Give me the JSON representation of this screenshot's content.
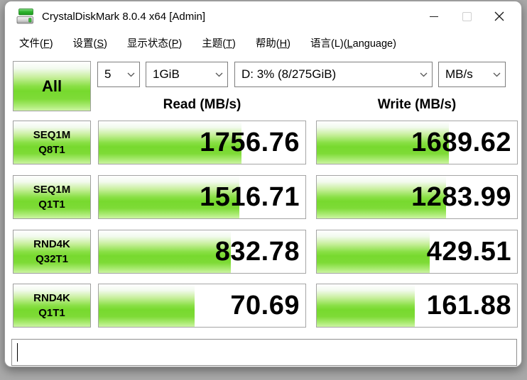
{
  "window": {
    "title": "CrystalDiskMark 8.0.4 x64 [Admin]"
  },
  "menu": {
    "items": [
      {
        "pre": "文件(",
        "key": "F",
        "post": ")"
      },
      {
        "pre": "设置(",
        "key": "S",
        "post": ")"
      },
      {
        "pre": "显示状态(",
        "key": "P",
        "post": ")"
      },
      {
        "pre": "主题(",
        "key": "T",
        "post": ")"
      },
      {
        "pre": "帮助(",
        "key": "H",
        "post": ")"
      },
      {
        "pre": "语言(L)(",
        "key": "L",
        "post": "anguage)"
      }
    ]
  },
  "toolbar": {
    "all_button": "All",
    "test_count": "5",
    "test_size": "1GiB",
    "target_drive": "D: 3% (8/275GiB)",
    "unit": "MB/s"
  },
  "headers": {
    "read": "Read (MB/s)",
    "write": "Write (MB/s)"
  },
  "rows": [
    {
      "label1": "SEQ1M",
      "label2": "Q8T1",
      "read": {
        "value": "1756.76",
        "fill": 69
      },
      "write": {
        "value": "1689.62",
        "fill": 66
      }
    },
    {
      "label1": "SEQ1M",
      "label2": "Q1T1",
      "read": {
        "value": "1516.71",
        "fill": 68
      },
      "write": {
        "value": "1283.99",
        "fill": 64.5
      }
    },
    {
      "label1": "RND4K",
      "label2": "Q32T1",
      "read": {
        "value": "832.78",
        "fill": 64
      },
      "write": {
        "value": "429.51",
        "fill": 56.5
      }
    },
    {
      "label1": "RND4K",
      "label2": "Q1T1",
      "read": {
        "value": "70.69",
        "fill": 46.5
      },
      "write": {
        "value": "161.88",
        "fill": 49
      }
    }
  ],
  "status_bar": {
    "text": ""
  },
  "icons": {
    "app": "disk-drive-icon",
    "combo": "chevron-down-icon"
  },
  "colors": {
    "bar_green": "#77d92e",
    "bar_green_pale": "#ccf5a3",
    "icon_green": "#2fb52f"
  }
}
